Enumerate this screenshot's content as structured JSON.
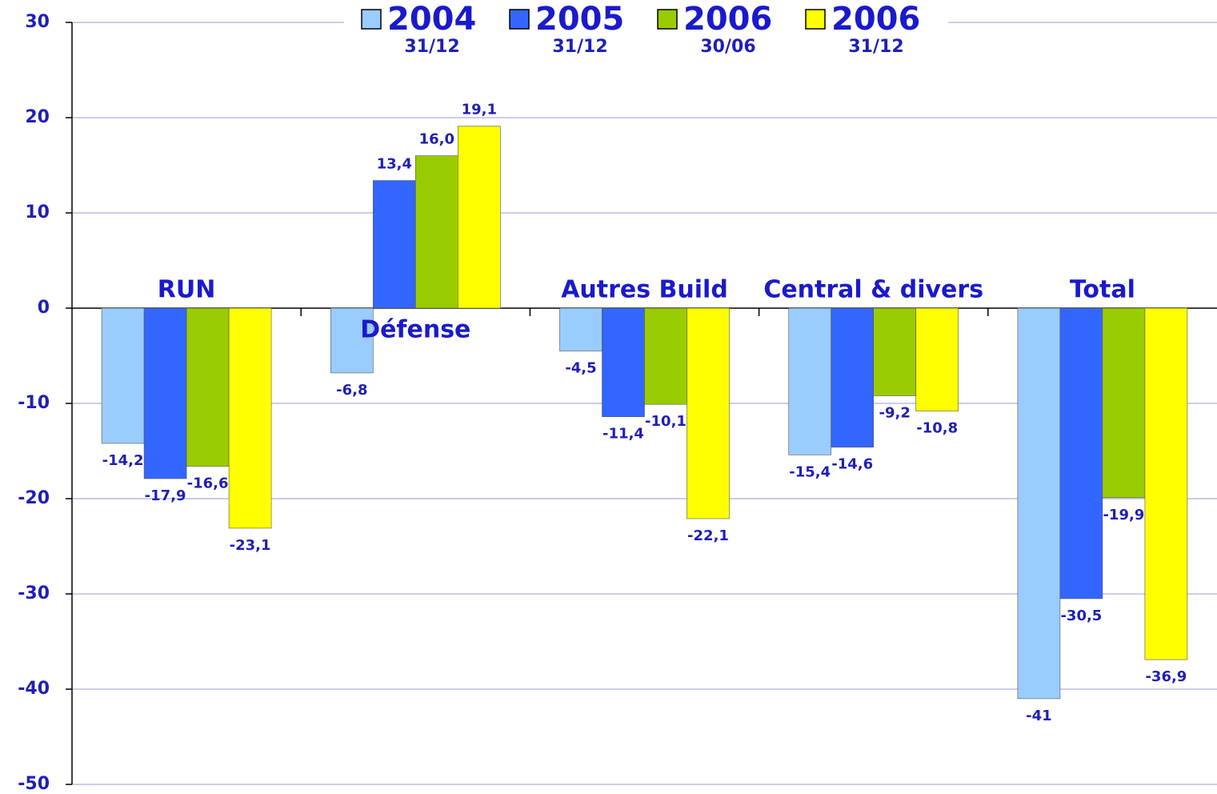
{
  "chart_data": {
    "type": "bar",
    "categories": [
      "RUN",
      "Défense",
      "Autres Build",
      "Central & divers",
      "Total"
    ],
    "series": [
      {
        "name": "2004",
        "date": "31/12",
        "color": "#99ccff",
        "values": [
          -14.2,
          -6.8,
          -4.5,
          -15.4,
          -41
        ],
        "value_labels": [
          "-14,2",
          "-6,8",
          "-4,5",
          "-15,4",
          "-41"
        ]
      },
      {
        "name": "2005",
        "date": "31/12",
        "color": "#3366ff",
        "values": [
          -17.9,
          13.4,
          -11.4,
          -14.6,
          -30.5
        ],
        "value_labels": [
          "-17,9",
          "13,4",
          "-11,4",
          "-14,6",
          "-30,5"
        ]
      },
      {
        "name": "2006",
        "date": "30/06",
        "color": "#99cc00",
        "values": [
          -16.6,
          16.0,
          -10.1,
          -9.2,
          -19.9
        ],
        "value_labels": [
          "-16,6",
          "16,0",
          "-10,1",
          "-9,2",
          "-19,9"
        ]
      },
      {
        "name": "2006",
        "date": "31/12",
        "color": "#ffff00",
        "values": [
          -23.1,
          19.1,
          -22.1,
          -10.8,
          -36.9
        ],
        "value_labels": [
          "-23,1",
          "19,1",
          "-22,1",
          "-10,8",
          "-36,9"
        ]
      }
    ],
    "ylim": [
      -50,
      30
    ],
    "yticks": [
      30,
      20,
      10,
      0,
      -10,
      -20,
      -30,
      -40,
      -50
    ],
    "grid": true,
    "legend": "top"
  }
}
